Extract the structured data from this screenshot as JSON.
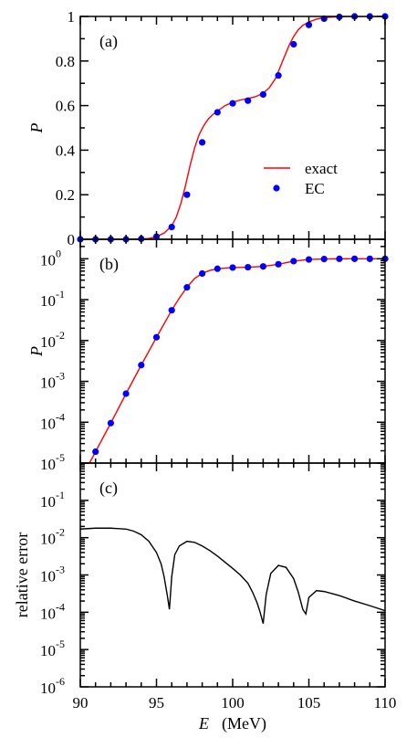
{
  "chart_data": [
    {
      "type": "line",
      "panel_label": "(a)",
      "xlim": [
        90,
        110
      ],
      "ylim": [
        0,
        1
      ],
      "ylabel": "P",
      "ytick_labels": [
        "0",
        "0.2",
        "0.4",
        "0.6",
        "0.8",
        "1"
      ],
      "ytick_values": [
        0,
        0.2,
        0.4,
        0.6,
        0.8,
        1
      ],
      "legend": {
        "placement": "center-right",
        "entries": [
          "exact",
          "EC"
        ]
      },
      "series": [
        {
          "name": "exact",
          "style": "line",
          "color": "#ff0000",
          "x": [
            90,
            93,
            94,
            94.5,
            95,
            95.5,
            96,
            96.3,
            96.6,
            96.9,
            97.2,
            97.5,
            97.8,
            98.1,
            98.4,
            98.7,
            99,
            99.5,
            100,
            100.5,
            101,
            101.5,
            102,
            102.4,
            102.8,
            103.1,
            103.4,
            103.7,
            104,
            104.3,
            104.6,
            105,
            105.5,
            106,
            107,
            108,
            109,
            110
          ],
          "y": [
            0,
            0,
            0.001,
            0.004,
            0.012,
            0.028,
            0.06,
            0.1,
            0.16,
            0.24,
            0.33,
            0.41,
            0.47,
            0.51,
            0.54,
            0.56,
            0.575,
            0.6,
            0.615,
            0.625,
            0.632,
            0.64,
            0.655,
            0.68,
            0.72,
            0.77,
            0.82,
            0.87,
            0.91,
            0.94,
            0.96,
            0.975,
            0.988,
            0.995,
            0.999,
            1.0,
            1.0,
            1.0
          ]
        },
        {
          "name": "EC",
          "style": "markers",
          "color": "#0000ff",
          "x": [
            90,
            91,
            92,
            93,
            94,
            95,
            96,
            97,
            98,
            99,
            100,
            101,
            102,
            103,
            104,
            105,
            106,
            107,
            108,
            109,
            110
          ],
          "y": [
            0,
            0,
            0,
            0,
            0.002,
            0.012,
            0.055,
            0.2,
            0.435,
            0.57,
            0.61,
            0.622,
            0.65,
            0.735,
            0.875,
            0.962,
            0.99,
            0.998,
            1.0,
            1.0,
            1.0
          ]
        }
      ]
    },
    {
      "type": "line",
      "panel_label": "(b)",
      "xlim": [
        90,
        110
      ],
      "ylim": [
        1e-05,
        3
      ],
      "yscale": "log",
      "ylabel": "P",
      "ytick_values": [
        1e-05,
        0.0001,
        0.001,
        0.01,
        0.1,
        1
      ],
      "ytick_exponents": [
        "-5",
        "-4",
        "-3",
        "-2",
        "-1",
        "0"
      ],
      "series": [
        {
          "name": "exact",
          "style": "line",
          "color": "#ff0000",
          "x": [
            90.6,
            91,
            92,
            93,
            94,
            95,
            96,
            96.5,
            97,
            97.5,
            98,
            98.5,
            99,
            100,
            101,
            102,
            103,
            104,
            105,
            106,
            107,
            108,
            109,
            110
          ],
          "y": [
            1e-05,
            1.9e-05,
            9.5e-05,
            0.0005,
            0.0025,
            0.012,
            0.055,
            0.11,
            0.2,
            0.33,
            0.44,
            0.52,
            0.57,
            0.61,
            0.622,
            0.65,
            0.735,
            0.875,
            0.962,
            0.99,
            0.998,
            1.0,
            1.0,
            1.0
          ]
        },
        {
          "name": "EC",
          "style": "markers",
          "color": "#0000ff",
          "x": [
            91,
            92,
            93,
            94,
            95,
            96,
            97,
            98,
            99,
            100,
            101,
            102,
            103,
            104,
            105,
            106,
            107,
            108,
            109,
            110
          ],
          "y": [
            1.9e-05,
            9.5e-05,
            0.0005,
            0.0025,
            0.012,
            0.055,
            0.2,
            0.435,
            0.57,
            0.61,
            0.622,
            0.65,
            0.735,
            0.875,
            0.962,
            0.99,
            0.998,
            1.0,
            1.0,
            1.0
          ]
        }
      ]
    },
    {
      "type": "line",
      "panel_label": "(c)",
      "xlim": [
        90,
        110
      ],
      "ylim": [
        1e-06,
        1
      ],
      "yscale": "log",
      "ylabel": "relative error",
      "xlabel_symbol": "E",
      "xlabel_unit": "(MeV)",
      "xtick_labels": [
        "90",
        "95",
        "100",
        "105",
        "110"
      ],
      "xtick_values": [
        90,
        95,
        100,
        105,
        110
      ],
      "ytick_values": [
        1e-06,
        1e-05,
        0.0001,
        0.001,
        0.01,
        0.1
      ],
      "ytick_exponents": [
        "-6",
        "-5",
        "-4",
        "-3",
        "-2",
        "-1"
      ],
      "series": [
        {
          "name": "relative error",
          "style": "line",
          "color": "#000000",
          "x": [
            90,
            91,
            92,
            93,
            93.5,
            94,
            94.5,
            95,
            95.3,
            95.5,
            95.7,
            95.85,
            96,
            96.2,
            96.5,
            97,
            97.5,
            98,
            98.5,
            99,
            99.5,
            100,
            100.5,
            101,
            101.3,
            101.6,
            101.8,
            102,
            102.2,
            102.5,
            103,
            103.5,
            104,
            104.3,
            104.6,
            104.8,
            105,
            105.5,
            106,
            107,
            108,
            109,
            110
          ],
          "y": [
            0.017,
            0.018,
            0.018,
            0.017,
            0.015,
            0.012,
            0.008,
            0.004,
            0.002,
            0.0009,
            0.0003,
            0.00012,
            0.0009,
            0.0035,
            0.006,
            0.008,
            0.0075,
            0.006,
            0.0045,
            0.0032,
            0.0022,
            0.0015,
            0.001,
            0.0006,
            0.00035,
            0.00018,
            0.0001,
            5e-05,
            0.0003,
            0.0011,
            0.0018,
            0.0016,
            0.0008,
            0.00035,
            0.00012,
            9e-05,
            0.00025,
            0.00038,
            0.00036,
            0.00028,
            0.0002,
            0.00015,
            0.00011
          ]
        }
      ]
    }
  ]
}
